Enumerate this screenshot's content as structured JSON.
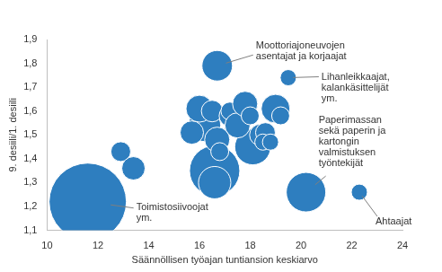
{
  "chart_data": {
    "type": "bubble",
    "x_label": "Säännöllisen työajan tuntiansion keskiarvo",
    "y_label": "9. desiili/1. desiili",
    "color": "#2e7ebf",
    "grid": false,
    "xlim": [
      10,
      24
    ],
    "xticks": [
      10,
      12,
      14,
      16,
      18,
      20,
      22,
      24
    ],
    "ylim": [
      1.1,
      1.9
    ],
    "yticks": [
      {
        "value": 1.1,
        "label": "1,1"
      },
      {
        "value": 1.2,
        "label": "1,2"
      },
      {
        "value": 1.3,
        "label": "1,3"
      },
      {
        "value": 1.4,
        "label": "1,4"
      },
      {
        "value": 1.5,
        "label": "1,5"
      },
      {
        "value": 1.6,
        "label": "1,6"
      },
      {
        "value": 1.7,
        "label": "1,7"
      },
      {
        "value": 1.8,
        "label": "1,8"
      },
      {
        "value": 1.9,
        "label": "1,9"
      }
    ],
    "points": [
      {
        "x": 11.6,
        "y": 1.22,
        "size": 43,
        "label": [
          "Toimistosiivoojat",
          "ym."
        ]
      },
      {
        "x": 16.6,
        "y": 1.35,
        "size": 28
      },
      {
        "x": 16.6,
        "y": 1.3,
        "size": 18
      },
      {
        "x": 18.1,
        "y": 1.45,
        "size": 20
      },
      {
        "x": 16.2,
        "y": 1.54,
        "size": 18
      },
      {
        "x": 16.0,
        "y": 1.61,
        "size": 15
      },
      {
        "x": 16.5,
        "y": 1.6,
        "size": 12
      },
      {
        "x": 15.7,
        "y": 1.51,
        "size": 13
      },
      {
        "x": 16.7,
        "y": 1.48,
        "size": 14
      },
      {
        "x": 16.8,
        "y": 1.43,
        "size": 10
      },
      {
        "x": 17.2,
        "y": 1.58,
        "size": 12
      },
      {
        "x": 17.2,
        "y": 1.6,
        "size": 10
      },
      {
        "x": 17.5,
        "y": 1.54,
        "size": 14
      },
      {
        "x": 17.8,
        "y": 1.63,
        "size": 14
      },
      {
        "x": 18.0,
        "y": 1.58,
        "size": 10
      },
      {
        "x": 18.4,
        "y": 1.5,
        "size": 12
      },
      {
        "x": 18.6,
        "y": 1.51,
        "size": 11
      },
      {
        "x": 18.5,
        "y": 1.47,
        "size": 9
      },
      {
        "x": 18.8,
        "y": 1.47,
        "size": 9
      },
      {
        "x": 19.0,
        "y": 1.61,
        "size": 16
      },
      {
        "x": 19.2,
        "y": 1.58,
        "size": 10
      },
      {
        "x": 12.9,
        "y": 1.43,
        "size": 11
      },
      {
        "x": 13.4,
        "y": 1.36,
        "size": 13
      },
      {
        "x": 16.7,
        "y": 1.79,
        "size": 17,
        "label": [
          "Moottoriajoneuvojen",
          "asentajat ja korjaajat"
        ]
      },
      {
        "x": 19.5,
        "y": 1.74,
        "size": 9,
        "label": [
          "Lihanleikkaajat,",
          "kalankäsittelijät",
          "ym."
        ]
      },
      {
        "x": 20.2,
        "y": 1.26,
        "size": 22,
        "label": [
          "Paperimassan",
          "sekä paperin ja",
          "kartongin",
          "valmistuksen",
          "työntekijät"
        ]
      },
      {
        "x": 22.3,
        "y": 1.26,
        "size": 9,
        "label": [
          "Ahtaajat"
        ]
      }
    ]
  }
}
